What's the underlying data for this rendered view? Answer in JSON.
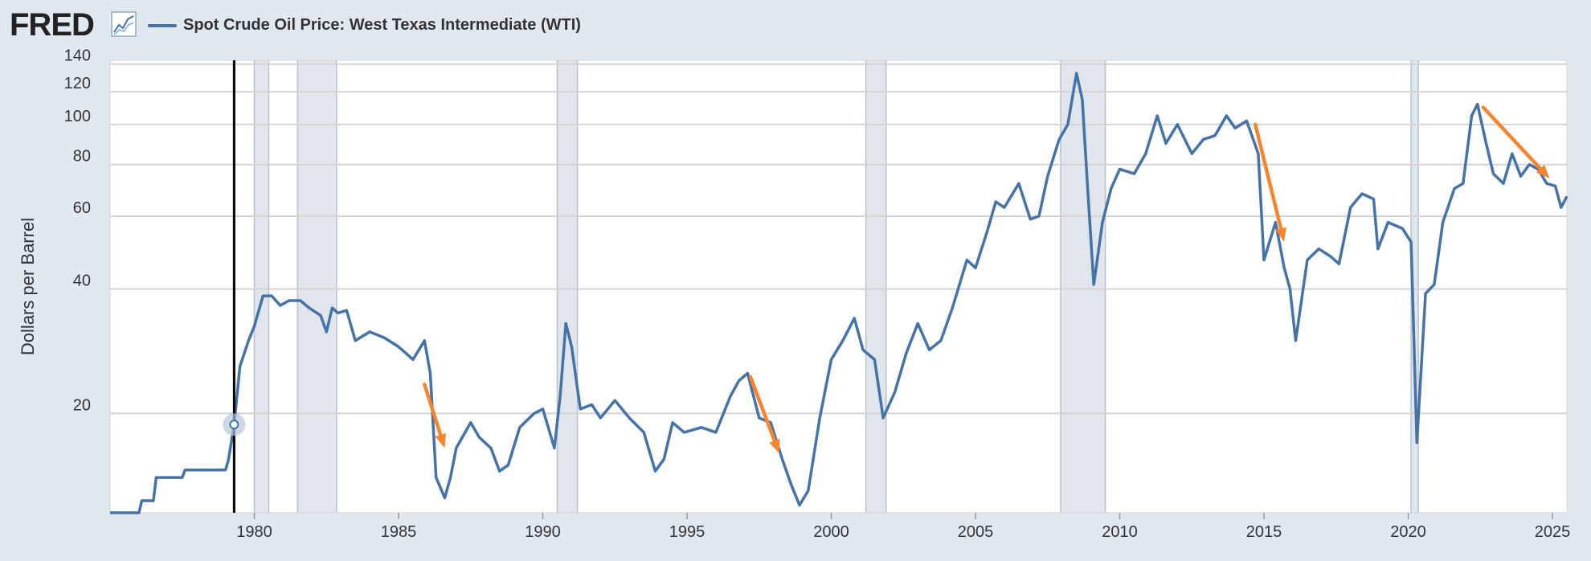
{
  "header": {
    "logo_text": "FRED",
    "legend_label": "Spot Crude Oil Price: West Texas Intermediate (WTI)"
  },
  "colors": {
    "background": "#e1e9f0",
    "plot_background": "#ffffff",
    "series": "#4572a7",
    "recession": "#e1e6ec",
    "annotation_arrow": "#f7852d"
  },
  "icons": {
    "logo_mark": "line-chart-icon"
  },
  "chart_data": {
    "type": "line",
    "title": "",
    "xlabel": "",
    "ylabel": "Dollars per Barrel",
    "y_scale": "log",
    "ylim": [
      11.5,
      143
    ],
    "xlim": [
      1975.0,
      2025.5
    ],
    "y_ticks": [
      20,
      40,
      60,
      80,
      100,
      120,
      140
    ],
    "x_ticks": [
      1980,
      1985,
      1990,
      1995,
      2000,
      2005,
      2010,
      2015,
      2020,
      2025
    ],
    "grid": true,
    "legend_position": "top-left",
    "recessions": [
      [
        1980.0,
        1980.5
      ],
      [
        1981.5,
        1982.85
      ],
      [
        1990.5,
        1991.2
      ],
      [
        2001.2,
        2001.9
      ],
      [
        2007.95,
        2009.5
      ],
      [
        2020.1,
        2020.35
      ]
    ],
    "cursor": {
      "x": 1979.3,
      "y": 18.8
    },
    "series": [
      {
        "values": [
          [
            1975.0,
            11.5
          ],
          [
            1976.0,
            11.5
          ],
          [
            1976.1,
            12.3
          ],
          [
            1976.5,
            12.3
          ],
          [
            1976.6,
            14.0
          ],
          [
            1977.5,
            14.0
          ],
          [
            1977.6,
            14.6
          ],
          [
            1979.0,
            14.6
          ],
          [
            1979.1,
            15.4
          ],
          [
            1979.3,
            18.8
          ],
          [
            1979.5,
            26.0
          ],
          [
            1979.8,
            30.0
          ],
          [
            1980.0,
            32.5
          ],
          [
            1980.3,
            38.5
          ],
          [
            1980.6,
            38.5
          ],
          [
            1980.9,
            36.5
          ],
          [
            1981.2,
            37.5
          ],
          [
            1981.6,
            37.5
          ],
          [
            1981.9,
            36.0
          ],
          [
            1982.3,
            34.5
          ],
          [
            1982.5,
            31.5
          ],
          [
            1982.7,
            36.0
          ],
          [
            1982.9,
            35.0
          ],
          [
            1983.2,
            35.5
          ],
          [
            1983.5,
            30.0
          ],
          [
            1984.0,
            31.5
          ],
          [
            1984.5,
            30.5
          ],
          [
            1985.0,
            29.0
          ],
          [
            1985.5,
            27.0
          ],
          [
            1985.9,
            30.0
          ],
          [
            1986.1,
            25.0
          ],
          [
            1986.3,
            14.0
          ],
          [
            1986.6,
            12.5
          ],
          [
            1986.8,
            14.0
          ],
          [
            1987.0,
            16.5
          ],
          [
            1987.5,
            19.0
          ],
          [
            1987.8,
            17.5
          ],
          [
            1988.2,
            16.5
          ],
          [
            1988.5,
            14.5
          ],
          [
            1988.8,
            15.0
          ],
          [
            1989.2,
            18.5
          ],
          [
            1989.7,
            20.0
          ],
          [
            1990.0,
            20.5
          ],
          [
            1990.4,
            16.5
          ],
          [
            1990.6,
            22.0
          ],
          [
            1990.8,
            33.0
          ],
          [
            1991.0,
            29.0
          ],
          [
            1991.3,
            20.5
          ],
          [
            1991.7,
            21.0
          ],
          [
            1992.0,
            19.5
          ],
          [
            1992.5,
            21.5
          ],
          [
            1993.0,
            19.5
          ],
          [
            1993.5,
            18.0
          ],
          [
            1993.9,
            14.5
          ],
          [
            1994.2,
            15.5
          ],
          [
            1994.5,
            19.0
          ],
          [
            1994.9,
            18.0
          ],
          [
            1995.5,
            18.5
          ],
          [
            1996.0,
            18.0
          ],
          [
            1996.5,
            22.0
          ],
          [
            1996.8,
            24.0
          ],
          [
            1997.1,
            25.0
          ],
          [
            1997.5,
            19.5
          ],
          [
            1997.9,
            19.0
          ],
          [
            1998.3,
            15.5
          ],
          [
            1998.6,
            13.5
          ],
          [
            1998.9,
            12.0
          ],
          [
            1999.2,
            13.0
          ],
          [
            1999.6,
            19.5
          ],
          [
            2000.0,
            27.0
          ],
          [
            2000.4,
            30.0
          ],
          [
            2000.8,
            34.0
          ],
          [
            2001.1,
            28.5
          ],
          [
            2001.5,
            27.0
          ],
          [
            2001.8,
            19.5
          ],
          [
            2002.2,
            22.5
          ],
          [
            2002.6,
            28.0
          ],
          [
            2003.0,
            33.0
          ],
          [
            2003.4,
            28.5
          ],
          [
            2003.8,
            30.0
          ],
          [
            2004.2,
            36.0
          ],
          [
            2004.7,
            47.0
          ],
          [
            2005.0,
            45.0
          ],
          [
            2005.4,
            55.0
          ],
          [
            2005.7,
            65.0
          ],
          [
            2006.0,
            63.0
          ],
          [
            2006.5,
            72.0
          ],
          [
            2006.9,
            59.0
          ],
          [
            2007.2,
            60.0
          ],
          [
            2007.5,
            75.0
          ],
          [
            2007.9,
            92.0
          ],
          [
            2008.2,
            100.0
          ],
          [
            2008.5,
            133.0
          ],
          [
            2008.7,
            115.0
          ],
          [
            2008.9,
            68.0
          ],
          [
            2009.1,
            41.0
          ],
          [
            2009.4,
            58.0
          ],
          [
            2009.7,
            70.0
          ],
          [
            2010.0,
            78.0
          ],
          [
            2010.5,
            76.0
          ],
          [
            2010.9,
            85.0
          ],
          [
            2011.3,
            105.0
          ],
          [
            2011.6,
            90.0
          ],
          [
            2012.0,
            100.0
          ],
          [
            2012.5,
            85.0
          ],
          [
            2012.9,
            92.0
          ],
          [
            2013.3,
            94.0
          ],
          [
            2013.7,
            105.0
          ],
          [
            2014.0,
            98.0
          ],
          [
            2014.4,
            102.0
          ],
          [
            2014.8,
            85.0
          ],
          [
            2015.0,
            47.0
          ],
          [
            2015.4,
            58.0
          ],
          [
            2015.7,
            45.0
          ],
          [
            2015.9,
            40.0
          ],
          [
            2016.1,
            30.0
          ],
          [
            2016.5,
            47.0
          ],
          [
            2016.9,
            50.0
          ],
          [
            2017.3,
            48.0
          ],
          [
            2017.6,
            46.0
          ],
          [
            2018.0,
            63.0
          ],
          [
            2018.4,
            68.0
          ],
          [
            2018.8,
            66.0
          ],
          [
            2018.95,
            50.0
          ],
          [
            2019.3,
            58.0
          ],
          [
            2019.8,
            56.0
          ],
          [
            2020.1,
            52.0
          ],
          [
            2020.3,
            17.0
          ],
          [
            2020.6,
            39.0
          ],
          [
            2020.9,
            41.0
          ],
          [
            2021.2,
            58.0
          ],
          [
            2021.6,
            70.0
          ],
          [
            2021.9,
            72.0
          ],
          [
            2022.2,
            105.0
          ],
          [
            2022.4,
            112.0
          ],
          [
            2022.7,
            90.0
          ],
          [
            2022.95,
            76.0
          ],
          [
            2023.3,
            72.0
          ],
          [
            2023.6,
            85.0
          ],
          [
            2023.9,
            75.0
          ],
          [
            2024.2,
            80.0
          ],
          [
            2024.5,
            78.0
          ],
          [
            2024.8,
            72.0
          ],
          [
            2025.1,
            71.0
          ],
          [
            2025.3,
            63.0
          ],
          [
            2025.5,
            67.0
          ]
        ]
      }
    ],
    "annotations": [
      {
        "from": [
          1985.9,
          23.5
        ],
        "to": [
          1986.6,
          16.5
        ]
      },
      {
        "from": [
          1997.2,
          24.5
        ],
        "to": [
          1998.2,
          16.0
        ]
      },
      {
        "from": [
          2014.7,
          100.0
        ],
        "to": [
          2015.7,
          52.0
        ]
      },
      {
        "from": [
          2022.6,
          110.0
        ],
        "to": [
          2024.9,
          74.0
        ]
      }
    ]
  }
}
